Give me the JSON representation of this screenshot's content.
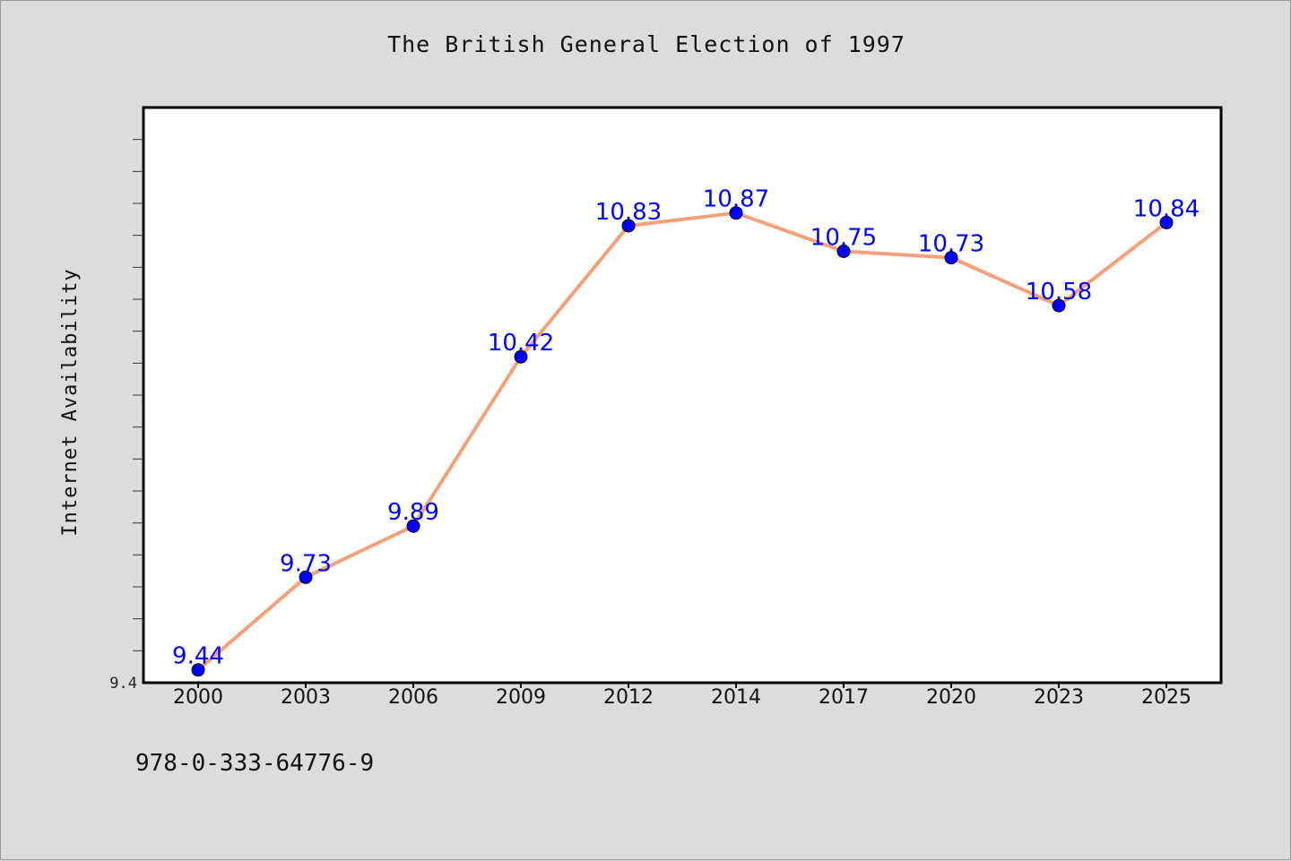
{
  "chart_data": {
    "type": "line",
    "title": "The British General Election of 1997",
    "xlabel": "",
    "ylabel": "Internet Availability",
    "categories": [
      "2000",
      "2003",
      "2006",
      "2009",
      "2012",
      "2014",
      "2017",
      "2020",
      "2023",
      "2025"
    ],
    "series": [
      {
        "values": [
          9.44,
          9.73,
          9.89,
          10.42,
          10.83,
          10.87,
          10.75,
          10.73,
          10.58,
          10.84
        ],
        "line_color": "#f4a07a",
        "marker_color": "#0000ff"
      }
    ],
    "data_labels": [
      "9.44",
      "9.73",
      "9.89",
      "10.42",
      "10.83",
      "10.87",
      "10.75",
      "10.73",
      "10.58",
      "10.84"
    ],
    "y_tick_labels": [
      "9.4"
    ],
    "ylim": [
      9.4,
      11.2
    ],
    "grid": false,
    "legend": "none"
  },
  "footer": {
    "code": "978-0-333-64776-9"
  }
}
